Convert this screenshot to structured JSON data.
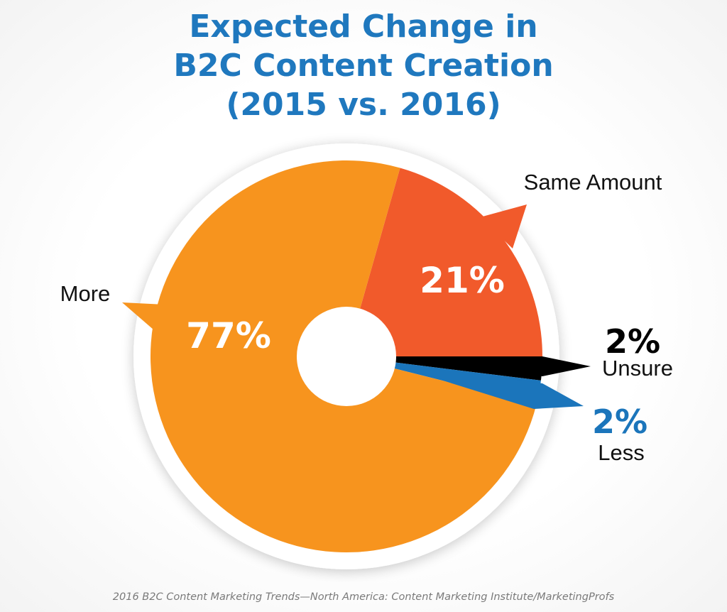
{
  "title_lines": [
    "Expected Change in",
    "B2C Content Creation",
    "(2015 vs. 2016)"
  ],
  "source": "2016 B2C Content Marketing Trends—North America: Content Marketing Institute/MarketingProfs",
  "colors": {
    "title": "#1f78be",
    "more": "#f7941e",
    "same": "#f15a2b",
    "unsure": "#000000",
    "less": "#1b75bb"
  },
  "chart_data": {
    "type": "pie",
    "title": "Expected Change in B2C Content Creation (2015 vs. 2016)",
    "unit": "%",
    "legend": "none",
    "slices": [
      {
        "name": "Same Amount",
        "value": 21,
        "label": "21%",
        "color": "#f15a2b"
      },
      {
        "name": "Unsure",
        "value": 2,
        "label": "2%",
        "color": "#000000"
      },
      {
        "name": "Less",
        "value": 2,
        "label": "2%",
        "color": "#1b75bb"
      },
      {
        "name": "More",
        "value": 77,
        "label": "77%",
        "color": "#f7941e"
      }
    ]
  }
}
